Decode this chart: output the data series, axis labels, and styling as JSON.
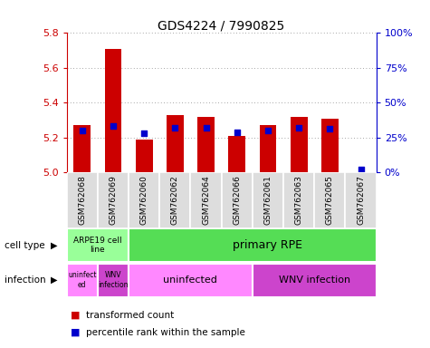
{
  "title": "GDS4224 / 7990825",
  "samples": [
    "GSM762068",
    "GSM762069",
    "GSM762060",
    "GSM762062",
    "GSM762064",
    "GSM762066",
    "GSM762061",
    "GSM762063",
    "GSM762065",
    "GSM762067"
  ],
  "transformed_counts": [
    5.27,
    5.71,
    5.19,
    5.33,
    5.32,
    5.21,
    5.27,
    5.32,
    5.31,
    5.0
  ],
  "percentile_ranks": [
    30,
    33,
    28,
    32,
    32,
    29,
    30,
    32,
    31,
    2
  ],
  "ylim": [
    5.0,
    5.8
  ],
  "yticks": [
    5.0,
    5.2,
    5.4,
    5.6,
    5.8
  ],
  "pct_ylim": [
    0,
    100
  ],
  "pct_yticks": [
    0,
    25,
    50,
    75,
    100
  ],
  "pct_yticklabels": [
    "0%",
    "25%",
    "50%",
    "75%",
    "100%"
  ],
  "bar_color": "#cc0000",
  "dot_color": "#0000cc",
  "bar_bottom": 5.0,
  "cell_type_arpe": "#99ff99",
  "cell_type_primary": "#55dd55",
  "infection_uninfected_color": "#ff88ff",
  "infection_wnv_color": "#cc44cc",
  "cell_type_arpe_label": "ARPE19 cell\nline",
  "cell_type_primary_label": "primary RPE",
  "infection_uninfected_arpe_label": "uninfect\ned",
  "infection_wnv_arpe_label": "WNV\ninfection",
  "infection_uninfected_label": "uninfected",
  "infection_wnv_label": "WNV infection",
  "left_label_celltype": "cell type",
  "left_label_infection": "infection",
  "legend_red": "transformed count",
  "legend_blue": "percentile rank within the sample",
  "grid_color": "#888888",
  "bg_color": "#ffffff",
  "tick_color_left": "#cc0000",
  "tick_color_right": "#0000cc",
  "xticklabel_bg": "#dddddd"
}
